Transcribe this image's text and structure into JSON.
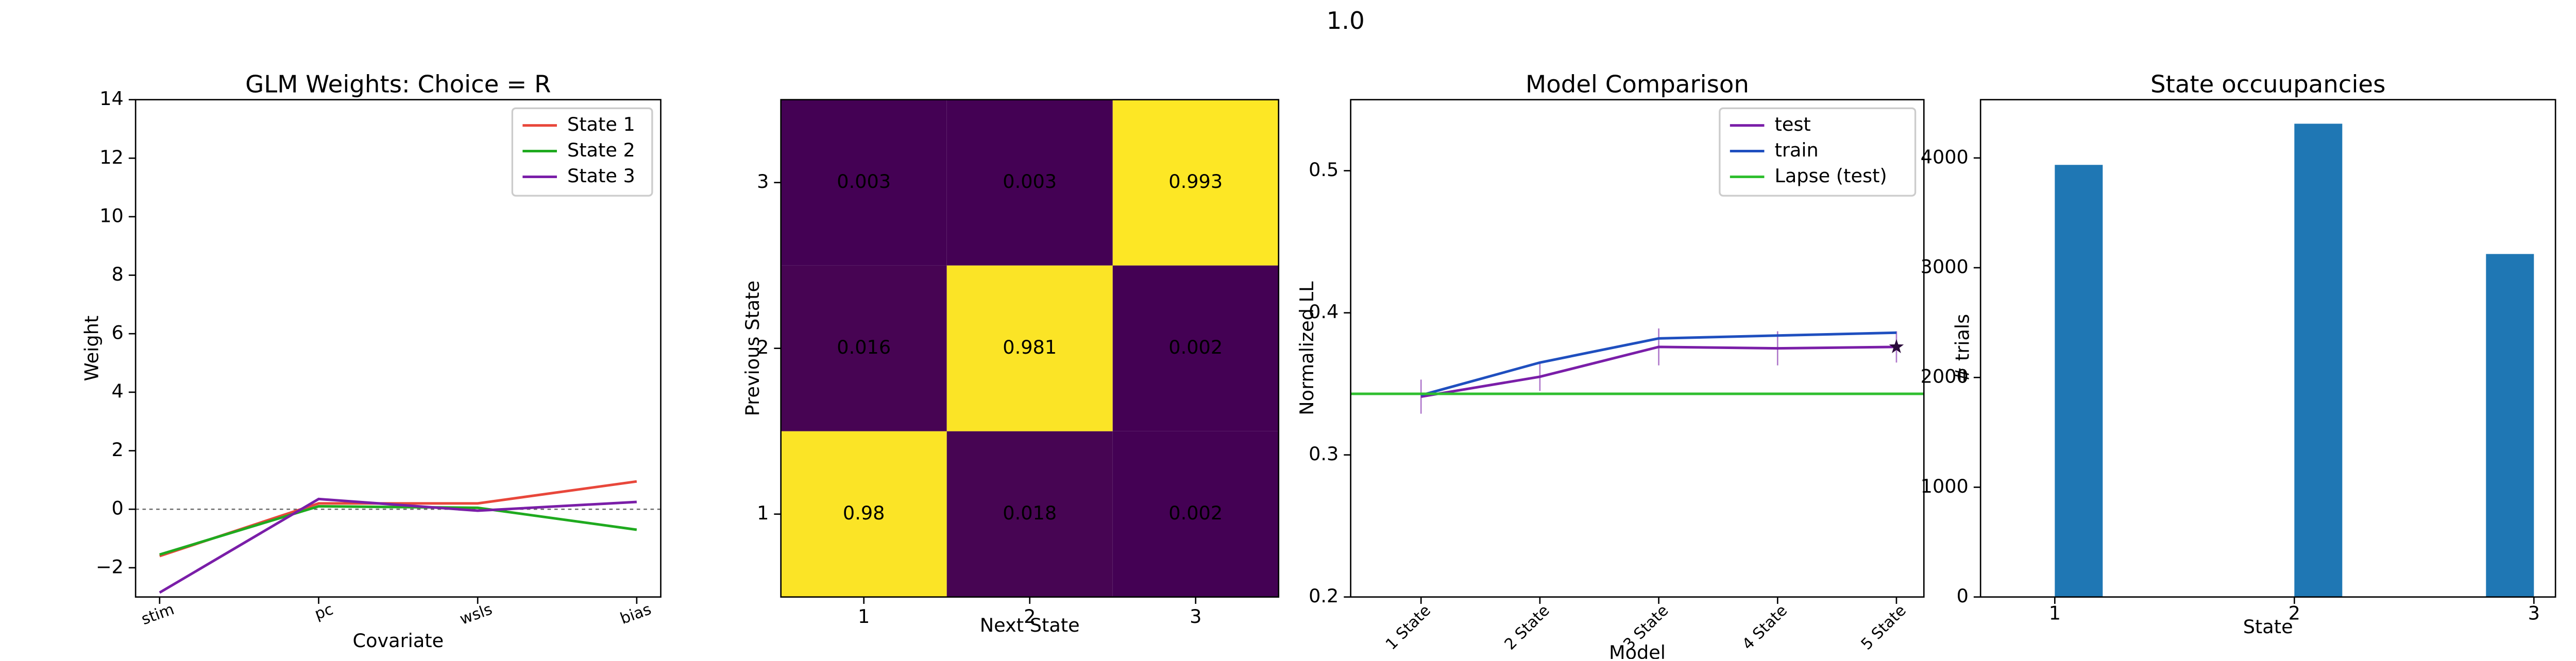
{
  "title": "1.0",
  "chart_data": [
    {
      "type": "line",
      "title": "GLM Weights: Choice = R",
      "xlabel": "Covariate",
      "ylabel": "Weight",
      "categories": [
        "stim",
        "pc",
        "wsls",
        "bias"
      ],
      "series": [
        {
          "name": "State 1",
          "color": "#e8473b",
          "values": [
            -1.6,
            0.2,
            0.2,
            0.95
          ]
        },
        {
          "name": "State 2",
          "color": "#1faa1f",
          "values": [
            -1.55,
            0.1,
            0.05,
            -0.7
          ]
        },
        {
          "name": "State 3",
          "color": "#7a1ea8",
          "values": [
            -2.85,
            0.35,
            -0.05,
            0.25
          ]
        }
      ],
      "ylim": [
        -3,
        14
      ],
      "yticks": [
        {
          "value": -2,
          "label": "−2"
        },
        0,
        2,
        4,
        6,
        8,
        10,
        12,
        14
      ],
      "reference_line": 0,
      "legend": "upper right",
      "x_label_rotation": -20
    },
    {
      "type": "heatmap",
      "xlabel": "Next State",
      "ylabel": "Previous State",
      "x_categories": [
        "1",
        "2",
        "3"
      ],
      "y_categories": [
        "1",
        "2",
        "3"
      ],
      "values": [
        [
          0.98,
          0.018,
          0.002
        ],
        [
          0.016,
          0.981,
          0.002
        ],
        [
          0.003,
          0.003,
          0.993
        ]
      ],
      "colormap": [
        "#440154",
        "#fde725"
      ]
    },
    {
      "type": "line",
      "title": "Model Comparison",
      "xlabel": "Model",
      "ylabel": "Normalized LL",
      "categories": [
        "1 State",
        "2 State",
        "3 State",
        "4 State",
        "5 State"
      ],
      "series": [
        {
          "name": "test",
          "color": "#7a1ea8",
          "values": [
            0.341,
            0.355,
            0.376,
            0.375,
            0.376
          ],
          "errors": [
            0.012,
            0.01,
            0.013,
            0.012,
            0.011
          ],
          "end_marker": "star"
        },
        {
          "name": "train",
          "color": "#1f4fbf",
          "values": [
            0.342,
            0.365,
            0.382,
            0.384,
            0.386
          ]
        },
        {
          "name": "Lapse (test)",
          "color": "#2fbf2f",
          "values": [
            0.343,
            0.343,
            0.343,
            0.343,
            0.343
          ],
          "style": "hline"
        }
      ],
      "ylim": [
        0.2,
        0.55
      ],
      "yticks": [
        0.2,
        0.3,
        0.4,
        0.5
      ],
      "legend": "upper right",
      "x_label_rotation": -45
    },
    {
      "type": "histogram",
      "title": "State occuupancies",
      "xlabel": "State",
      "ylabel": "# trials",
      "bins": [
        1,
        1.2,
        1.4,
        1.6,
        1.8,
        2,
        2.2,
        2.4,
        2.6,
        2.8,
        3
      ],
      "values": [
        3937,
        0,
        0,
        0,
        0,
        4312,
        0,
        0,
        0,
        3125
      ],
      "color": "#1f77b4",
      "xlim": [
        0.69,
        3.09
      ],
      "xticks": [
        1,
        2,
        3
      ],
      "ylim": [
        0,
        4531
      ],
      "yticks": [
        0,
        1000,
        2000,
        3000,
        4000
      ]
    }
  ]
}
